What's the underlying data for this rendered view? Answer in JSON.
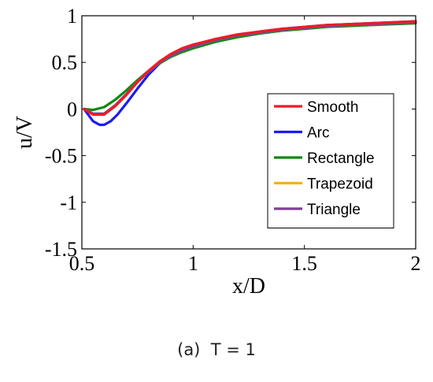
{
  "caption": "(a)  T = 1",
  "chart_data": {
    "type": "line",
    "xlabel": "x/D",
    "ylabel": "u/V",
    "xlim": [
      0.5,
      2
    ],
    "ylim": [
      -1.5,
      1
    ],
    "xticks": [
      0.5,
      1,
      1.5,
      2
    ],
    "xtick_labels": [
      "0.5",
      "1",
      "1.5",
      "2"
    ],
    "yticks": [
      -1.5,
      -1,
      -0.5,
      0,
      0.5,
      1
    ],
    "ytick_labels": [
      "-1.5",
      "-1",
      "-0.5",
      "0",
      "0.5",
      "1"
    ],
    "grid": false,
    "legend_position": "center-right",
    "series": [
      {
        "name": "Smooth",
        "color": "#ee1c24",
        "x": [
          0.51,
          0.55,
          0.6,
          0.65,
          0.7,
          0.75,
          0.8,
          0.85,
          0.9,
          0.95,
          1.0,
          1.1,
          1.2,
          1.3,
          1.4,
          1.5,
          1.6,
          1.7,
          1.8,
          1.9,
          2.0
        ],
        "y": [
          0,
          -0.06,
          -0.06,
          0.03,
          0.15,
          0.29,
          0.41,
          0.51,
          0.59,
          0.65,
          0.69,
          0.75,
          0.8,
          0.83,
          0.86,
          0.88,
          0.9,
          0.91,
          0.92,
          0.93,
          0.94
        ]
      },
      {
        "name": "Arc",
        "color": "#1c1cf0",
        "x": [
          0.51,
          0.55,
          0.58,
          0.6,
          0.63,
          0.66,
          0.7,
          0.75,
          0.8,
          0.85,
          0.9,
          0.95,
          1.0,
          1.1,
          1.2,
          1.3,
          1.4,
          1.5,
          1.6,
          1.7,
          1.8,
          1.9,
          2.0
        ],
        "y": [
          0,
          -0.13,
          -0.17,
          -0.17,
          -0.13,
          -0.06,
          0.06,
          0.22,
          0.37,
          0.49,
          0.57,
          0.63,
          0.67,
          0.74,
          0.79,
          0.83,
          0.86,
          0.88,
          0.9,
          0.91,
          0.92,
          0.93,
          0.94
        ]
      },
      {
        "name": "Rectangle",
        "color": "#118811",
        "x": [
          0.51,
          0.55,
          0.6,
          0.65,
          0.7,
          0.75,
          0.8,
          0.85,
          0.9,
          0.95,
          1.0,
          1.1,
          1.2,
          1.3,
          1.4,
          1.5,
          1.6,
          1.7,
          1.8,
          1.9,
          2.0
        ],
        "y": [
          0,
          -0.01,
          0.02,
          0.1,
          0.2,
          0.31,
          0.41,
          0.49,
          0.56,
          0.61,
          0.65,
          0.72,
          0.77,
          0.81,
          0.84,
          0.86,
          0.88,
          0.89,
          0.9,
          0.91,
          0.92
        ]
      },
      {
        "name": "Trapezoid",
        "color": "#f5b01f",
        "x": [
          0.51,
          0.55,
          0.6,
          0.65,
          0.7,
          0.75,
          0.8,
          0.85,
          0.9,
          0.95,
          1.0,
          1.1,
          1.2,
          1.3,
          1.4,
          1.5,
          1.6,
          1.7,
          1.8,
          1.9,
          2.0
        ],
        "y": [
          0,
          -0.05,
          -0.05,
          0.04,
          0.16,
          0.29,
          0.4,
          0.5,
          0.57,
          0.63,
          0.67,
          0.74,
          0.79,
          0.82,
          0.85,
          0.87,
          0.89,
          0.9,
          0.91,
          0.92,
          0.93
        ]
      },
      {
        "name": "Triangle",
        "color": "#7e3f98",
        "x": [
          0.51,
          0.55,
          0.6,
          0.65,
          0.7,
          0.75,
          0.8,
          0.85,
          0.9,
          0.95,
          1.0,
          1.1,
          1.2,
          1.3,
          1.4,
          1.5,
          1.6,
          1.7,
          1.8,
          1.9,
          2.0
        ],
        "y": [
          0,
          -0.05,
          -0.05,
          0.04,
          0.16,
          0.29,
          0.4,
          0.5,
          0.57,
          0.63,
          0.67,
          0.74,
          0.79,
          0.82,
          0.85,
          0.87,
          0.89,
          0.9,
          0.91,
          0.92,
          0.93
        ]
      }
    ]
  }
}
